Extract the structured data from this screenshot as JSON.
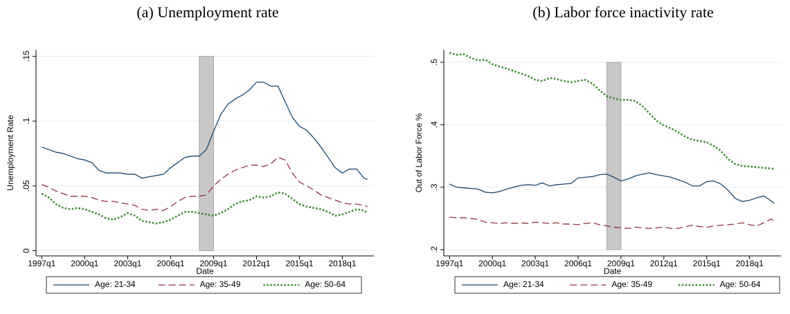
{
  "chart_data": [
    {
      "type": "line",
      "title": "(a) Unemployment rate",
      "xlabel": "Date",
      "ylabel": "Unemployment Rate",
      "x": [
        1997,
        1997.5,
        1998,
        1998.5,
        1999,
        1999.5,
        2000,
        2000.5,
        2001,
        2001.5,
        2002,
        2002.5,
        2003,
        2003.5,
        2004,
        2004.5,
        2005,
        2005.5,
        2006,
        2006.5,
        2007,
        2007.5,
        2008,
        2008.5,
        2009,
        2009.5,
        2010,
        2010.5,
        2011,
        2011.5,
        2012,
        2012.5,
        2013,
        2013.5,
        2014,
        2014.5,
        2015,
        2015.5,
        2016,
        2016.5,
        2017,
        2017.5,
        2018,
        2018.5,
        2019,
        2019.5,
        2019.75
      ],
      "xlim": [
        1996.6,
        2020.2
      ],
      "xticks": [
        {
          "value": 1997,
          "label": "1997q1"
        },
        {
          "value": 2000,
          "label": "2000q1"
        },
        {
          "value": 2003,
          "label": "2003q1"
        },
        {
          "value": 2006,
          "label": "2006q1"
        },
        {
          "value": 2009,
          "label": "2009q1"
        },
        {
          "value": 2012,
          "label": "2012q1"
        },
        {
          "value": 2015,
          "label": "2015q1"
        },
        {
          "value": 2018,
          "label": "2018q1"
        }
      ],
      "ylim": [
        -0.004,
        0.155
      ],
      "yticks": [
        0,
        {
          "value": 0.05,
          "label": ".05"
        },
        {
          "value": 0.1,
          "label": ".1"
        },
        {
          "value": 0.15,
          "label": ".15"
        }
      ],
      "grid": true,
      "recession": [
        2008,
        2009
      ],
      "series": [
        {
          "name": "Age: 21-34",
          "color": "#1a476f",
          "dash": "solid",
          "values": [
            0.08,
            0.078,
            0.076,
            0.075,
            0.073,
            0.071,
            0.07,
            0.068,
            0.062,
            0.06,
            0.06,
            0.06,
            0.059,
            0.059,
            0.056,
            0.057,
            0.058,
            0.059,
            0.064,
            0.068,
            0.072,
            0.073,
            0.073,
            0.078,
            0.092,
            0.105,
            0.113,
            0.117,
            0.12,
            0.124,
            0.13,
            0.13,
            0.127,
            0.127,
            0.115,
            0.103,
            0.096,
            0.093,
            0.087,
            0.08,
            0.072,
            0.064,
            0.06,
            0.063,
            0.063,
            0.056,
            0.055
          ]
        },
        {
          "name": "Age: 35-49",
          "color": "#90353b",
          "dash": "dashed",
          "values": [
            0.051,
            0.049,
            0.046,
            0.044,
            0.042,
            0.042,
            0.042,
            0.041,
            0.039,
            0.038,
            0.038,
            0.037,
            0.036,
            0.035,
            0.032,
            0.031,
            0.032,
            0.031,
            0.034,
            0.038,
            0.041,
            0.042,
            0.042,
            0.043,
            0.05,
            0.055,
            0.059,
            0.062,
            0.064,
            0.066,
            0.066,
            0.065,
            0.067,
            0.072,
            0.07,
            0.06,
            0.053,
            0.05,
            0.047,
            0.043,
            0.041,
            0.039,
            0.037,
            0.036,
            0.036,
            0.035,
            0.034
          ]
        },
        {
          "name": "Age: 50-64",
          "color": "#3a8a2e",
          "dash": "dotted",
          "values": [
            0.044,
            0.041,
            0.036,
            0.033,
            0.032,
            0.033,
            0.032,
            0.03,
            0.028,
            0.025,
            0.024,
            0.026,
            0.029,
            0.027,
            0.023,
            0.022,
            0.021,
            0.022,
            0.024,
            0.027,
            0.03,
            0.03,
            0.029,
            0.028,
            0.027,
            0.029,
            0.032,
            0.036,
            0.038,
            0.039,
            0.042,
            0.041,
            0.042,
            0.045,
            0.044,
            0.04,
            0.036,
            0.034,
            0.033,
            0.032,
            0.03,
            0.027,
            0.028,
            0.03,
            0.032,
            0.031,
            0.029
          ]
        }
      ]
    },
    {
      "type": "line",
      "title": "(b) Labor force inactivity rate",
      "xlabel": "Date",
      "ylabel": "Out of Labor Force %",
      "x": [
        1997,
        1997.5,
        1998,
        1998.5,
        1999,
        1999.5,
        2000,
        2000.5,
        2001,
        2001.5,
        2002,
        2002.5,
        2003,
        2003.5,
        2004,
        2004.5,
        2005,
        2005.5,
        2006,
        2006.5,
        2007,
        2007.5,
        2008,
        2008.5,
        2009,
        2009.5,
        2010,
        2010.5,
        2011,
        2011.5,
        2012,
        2012.5,
        2013,
        2013.5,
        2014,
        2014.5,
        2015,
        2015.5,
        2016,
        2016.5,
        2017,
        2017.5,
        2018,
        2018.5,
        2019,
        2019.5,
        2019.75
      ],
      "xlim": [
        1996.6,
        2020.2
      ],
      "xticks": [
        {
          "value": 1997,
          "label": "1997q1"
        },
        {
          "value": 2000,
          "label": "2000q1"
        },
        {
          "value": 2003,
          "label": "2003q1"
        },
        {
          "value": 2006,
          "label": "2006q1"
        },
        {
          "value": 2009,
          "label": "2009q1"
        },
        {
          "value": 2012,
          "label": "2012q1"
        },
        {
          "value": 2015,
          "label": "2015q1"
        },
        {
          "value": 2018,
          "label": "2018q1"
        }
      ],
      "ylim": [
        0.19,
        0.52
      ],
      "yticks": [
        {
          "value": 0.2,
          "label": ".2"
        },
        {
          "value": 0.3,
          "label": ".3"
        },
        {
          "value": 0.4,
          "label": ".4"
        },
        {
          "value": 0.5,
          "label": ".5"
        }
      ],
      "grid": true,
      "recession": [
        2008,
        2009
      ],
      "series": [
        {
          "name": "Age: 21-34",
          "color": "#1a476f",
          "dash": "solid",
          "values": [
            0.305,
            0.3,
            0.299,
            0.298,
            0.297,
            0.292,
            0.291,
            0.293,
            0.297,
            0.3,
            0.303,
            0.304,
            0.303,
            0.307,
            0.302,
            0.304,
            0.305,
            0.306,
            0.315,
            0.316,
            0.317,
            0.32,
            0.321,
            0.316,
            0.31,
            0.313,
            0.318,
            0.321,
            0.323,
            0.32,
            0.318,
            0.316,
            0.312,
            0.308,
            0.302,
            0.302,
            0.309,
            0.31,
            0.305,
            0.295,
            0.282,
            0.277,
            0.279,
            0.283,
            0.286,
            0.278,
            0.274
          ]
        },
        {
          "name": "Age: 35-49",
          "color": "#90353b",
          "dash": "dashed",
          "values": [
            0.252,
            0.251,
            0.251,
            0.25,
            0.248,
            0.244,
            0.243,
            0.242,
            0.243,
            0.242,
            0.243,
            0.242,
            0.244,
            0.243,
            0.242,
            0.243,
            0.241,
            0.241,
            0.24,
            0.242,
            0.243,
            0.24,
            0.238,
            0.236,
            0.235,
            0.234,
            0.236,
            0.235,
            0.234,
            0.235,
            0.236,
            0.234,
            0.234,
            0.237,
            0.239,
            0.237,
            0.236,
            0.238,
            0.239,
            0.24,
            0.241,
            0.243,
            0.24,
            0.238,
            0.243,
            0.249,
            0.246
          ]
        },
        {
          "name": "Age: 50-64",
          "color": "#3a8a2e",
          "dash": "dotted",
          "values": [
            0.515,
            0.512,
            0.513,
            0.507,
            0.503,
            0.504,
            0.497,
            0.493,
            0.49,
            0.486,
            0.482,
            0.478,
            0.472,
            0.47,
            0.475,
            0.473,
            0.47,
            0.468,
            0.47,
            0.472,
            0.466,
            0.455,
            0.446,
            0.442,
            0.44,
            0.44,
            0.438,
            0.43,
            0.418,
            0.406,
            0.399,
            0.394,
            0.388,
            0.381,
            0.376,
            0.374,
            0.372,
            0.366,
            0.358,
            0.345,
            0.337,
            0.334,
            0.333,
            0.332,
            0.331,
            0.33,
            0.329
          ]
        }
      ]
    }
  ]
}
